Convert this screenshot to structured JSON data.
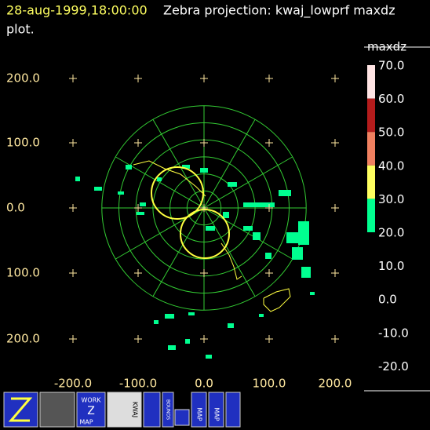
{
  "header": {
    "timestamp": "28-aug-1999,18:00:00",
    "title_line1": "Zebra projection: kwaj_lowprf maxdz",
    "title_line2": "plot."
  },
  "plot": {
    "y_labels": [
      "200.0",
      "100.0",
      "0.0",
      "100.0",
      "200.0"
    ],
    "x_labels": [
      "-200.0",
      "-100.0",
      "0.0",
      "100.0",
      "200.0"
    ]
  },
  "colorbar": {
    "title": "maxdz",
    "labels": [
      "70.0",
      "60.0",
      "50.0",
      "40.0",
      "30.0",
      "20.0",
      "10.0",
      "0.0",
      "-10.0",
      "-20.0"
    ]
  },
  "toolbar": {
    "work_map": [
      "WORK",
      "Z",
      "MAP"
    ],
    "kwaj": "KWAJ",
    "bounds": "BOUNDS",
    "map1": "MAP",
    "map2": "MAP"
  }
}
